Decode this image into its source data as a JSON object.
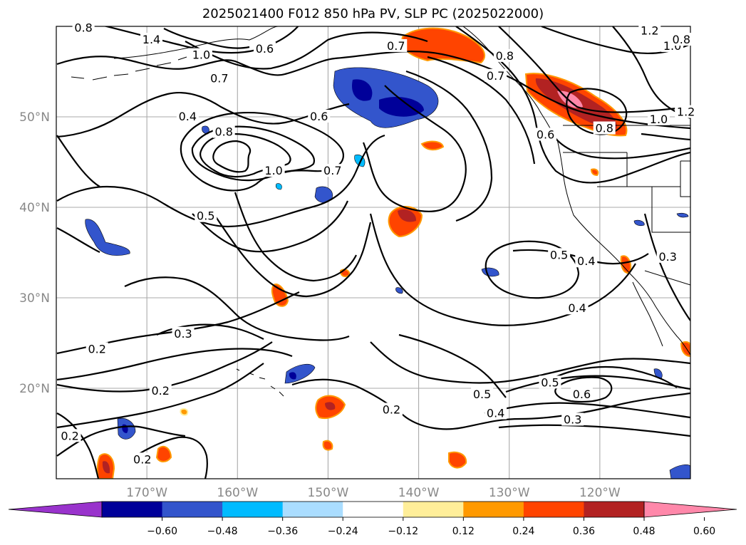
{
  "title": "2025021400 F012 850 hPa PV, SLP PC (2025022000)",
  "map": {
    "lon_range": [
      -180,
      -110
    ],
    "lat_range": [
      10,
      60
    ],
    "lon_ticks": [
      {
        "lon": -170,
        "label": "170°W"
      },
      {
        "lon": -160,
        "label": "160°W"
      },
      {
        "lon": -150,
        "label": "150°W"
      },
      {
        "lon": -140,
        "label": "140°W"
      },
      {
        "lon": -130,
        "label": "130°W"
      },
      {
        "lon": -120,
        "label": "120°W"
      }
    ],
    "lat_ticks": [
      {
        "lat": 50,
        "label": "50°N"
      },
      {
        "lat": 40,
        "label": "40°N"
      },
      {
        "lat": 30,
        "label": "30°N"
      },
      {
        "lat": 20,
        "label": "20°N"
      }
    ],
    "grid": true
  },
  "contour_labels": [
    {
      "text": "0.8",
      "lon": -177.0,
      "lat": 59.8
    },
    {
      "text": "1.4",
      "lon": -169.5,
      "lat": 58.5
    },
    {
      "text": "1.0",
      "lon": -164.0,
      "lat": 56.8
    },
    {
      "text": "0.6",
      "lon": -157.0,
      "lat": 57.5
    },
    {
      "text": "0.7",
      "lon": -162.0,
      "lat": 54.2
    },
    {
      "text": "0.7",
      "lon": -142.5,
      "lat": 57.8
    },
    {
      "text": "1.2",
      "lon": -114.5,
      "lat": 59.5
    },
    {
      "text": "1.0",
      "lon": -112.0,
      "lat": 57.8
    },
    {
      "text": "0.8",
      "lon": -111.0,
      "lat": 58.5
    },
    {
      "text": "0.8",
      "lon": -130.5,
      "lat": 56.7
    },
    {
      "text": "0.7",
      "lon": -131.5,
      "lat": 54.5
    },
    {
      "text": "1.2",
      "lon": -110.5,
      "lat": 50.5
    },
    {
      "text": "1.0",
      "lon": -113.5,
      "lat": 49.7
    },
    {
      "text": "0.8",
      "lon": -119.5,
      "lat": 48.7
    },
    {
      "text": "0.6",
      "lon": -126.0,
      "lat": 48.0
    },
    {
      "text": "0.4",
      "lon": -165.5,
      "lat": 50.0
    },
    {
      "text": "0.8",
      "lon": -161.5,
      "lat": 48.3
    },
    {
      "text": "0.6",
      "lon": -151.0,
      "lat": 50.0
    },
    {
      "text": "1.0",
      "lon": -156.0,
      "lat": 44.0
    },
    {
      "text": "0.7",
      "lon": -149.5,
      "lat": 44.0
    },
    {
      "text": "0.5",
      "lon": -163.5,
      "lat": 39.0
    },
    {
      "text": "0.5",
      "lon": -124.5,
      "lat": 34.7
    },
    {
      "text": "0.4",
      "lon": -121.5,
      "lat": 34.0
    },
    {
      "text": "0.3",
      "lon": -112.5,
      "lat": 34.5
    },
    {
      "text": "0.4",
      "lon": -122.5,
      "lat": 28.8
    },
    {
      "text": "0.3",
      "lon": -166.0,
      "lat": 26.0
    },
    {
      "text": "0.2",
      "lon": -175.5,
      "lat": 24.3
    },
    {
      "text": "0.2",
      "lon": -168.5,
      "lat": 19.7
    },
    {
      "text": "0.5",
      "lon": -125.5,
      "lat": 20.6
    },
    {
      "text": "0.5",
      "lon": -133.0,
      "lat": 19.3
    },
    {
      "text": "0.6",
      "lon": -122.0,
      "lat": 19.3
    },
    {
      "text": "0.2",
      "lon": -143.0,
      "lat": 17.6
    },
    {
      "text": "0.4",
      "lon": -131.5,
      "lat": 17.2
    },
    {
      "text": "0.3",
      "lon": -123.0,
      "lat": 16.5
    },
    {
      "text": "0.2",
      "lon": -178.5,
      "lat": 14.7
    },
    {
      "text": "0.2",
      "lon": -170.5,
      "lat": 12.1
    }
  ],
  "colorbar": {
    "colors": [
      "#9933cc",
      "#000099",
      "#3355cc",
      "#00bbff",
      "#aaddff",
      "#ffffff",
      "#ffee99",
      "#ff9900",
      "#ff4400",
      "#b22222",
      "#ff88aa"
    ],
    "ticks": [
      "−0.60",
      "−0.48",
      "−0.36",
      "−0.24",
      "−0.12",
      "0.12",
      "0.24",
      "0.36",
      "0.48",
      "0.60"
    ],
    "extend": "both"
  }
}
